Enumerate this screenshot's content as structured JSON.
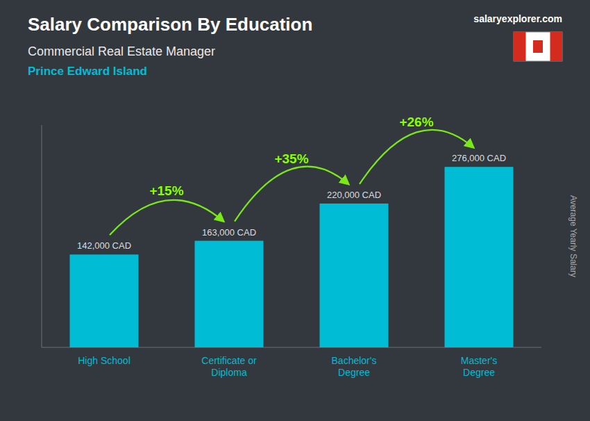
{
  "chart_data": {
    "type": "bar",
    "title": "Salary Comparison By Education",
    "subtitle": [
      "Commercial Real Estate Manager",
      "Prince Edward Island"
    ],
    "source": "salaryexplorer.com",
    "ylabel": "Average Yearly Salary",
    "categories": [
      "High School",
      "Certificate or\nDiploma",
      "Bachelor's\nDegree",
      "Master's\nDegree"
    ],
    "values": [
      142000,
      163000,
      220000,
      276000
    ],
    "value_labels": [
      "142,000 CAD",
      "163,000 CAD",
      "220,000 CAD",
      "276,000 CAD"
    ],
    "data_labels": true,
    "annotations": [
      "+15%",
      "+35%",
      "+26%"
    ],
    "color": "#00bcd4",
    "ylim": [
      0,
      340000
    ],
    "tick_labels": false
  }
}
